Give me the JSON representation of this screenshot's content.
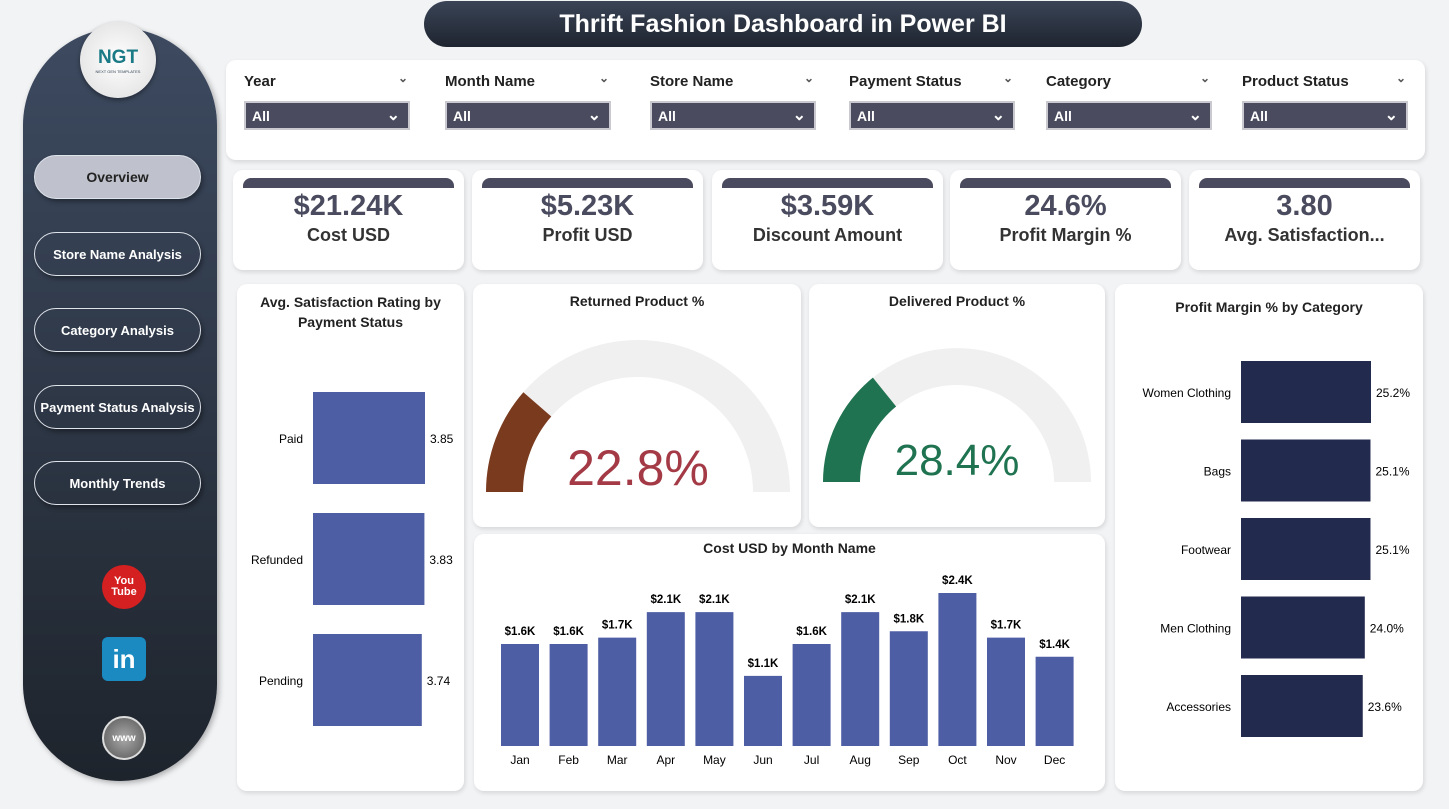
{
  "title": "Thrift Fashion Dashboard in Power BI",
  "logo": {
    "text": "NGT",
    "sub": "NEXT GEN TEMPLATES"
  },
  "nav": [
    {
      "label": "Overview",
      "active": true
    },
    {
      "label": "Store Name Analysis"
    },
    {
      "label": "Category Analysis"
    },
    {
      "label": "Payment Status Analysis"
    },
    {
      "label": "Monthly Trends"
    }
  ],
  "social": {
    "youtube": "You Tube",
    "linkedin": "in",
    "web": "www"
  },
  "filters": [
    {
      "label": "Year",
      "value": "All"
    },
    {
      "label": "Month Name",
      "value": "All"
    },
    {
      "label": "Store Name",
      "value": "All"
    },
    {
      "label": "Payment Status",
      "value": "All"
    },
    {
      "label": "Category",
      "value": "All"
    },
    {
      "label": "Product Status",
      "value": "All"
    }
  ],
  "kpis": [
    {
      "value": "$21.24K",
      "label": "Cost USD"
    },
    {
      "value": "$5.23K",
      "label": "Profit USD"
    },
    {
      "value": "$3.59K",
      "label": "Discount Amount"
    },
    {
      "value": "24.6%",
      "label": "Profit Margin %"
    },
    {
      "value": "3.80",
      "label": "Avg. Satisfaction..."
    }
  ],
  "colors": {
    "bar": "#4e5ea5",
    "catbar": "#222a4e",
    "returned": "#7a3a1e",
    "returned_text": "#a33a45",
    "delivered": "#1f7350",
    "track": "#f1f0f0"
  },
  "chart_data": [
    {
      "type": "bar",
      "title": "Avg. Satisfaction Rating by Payment Status",
      "orientation": "horizontal",
      "categories": [
        "Paid",
        "Refunded",
        "Pending"
      ],
      "values": [
        3.85,
        3.83,
        3.74
      ],
      "labels": [
        "3.85",
        "3.83",
        "3.74"
      ]
    },
    {
      "type": "gauge",
      "title": "Returned Product %",
      "value": 22.8,
      "label": "22.8%",
      "range": [
        0,
        100
      ]
    },
    {
      "type": "gauge",
      "title": "Delivered Product %",
      "value": 28.4,
      "label": "28.4%",
      "range": [
        0,
        100
      ]
    },
    {
      "type": "bar",
      "title": "Cost USD by Month Name",
      "categories": [
        "Jan",
        "Feb",
        "Mar",
        "Apr",
        "May",
        "Jun",
        "Jul",
        "Aug",
        "Sep",
        "Oct",
        "Nov",
        "Dec"
      ],
      "values": [
        1.6,
        1.6,
        1.7,
        2.1,
        2.1,
        1.1,
        1.6,
        2.1,
        1.8,
        2.4,
        1.7,
        1.4
      ],
      "labels": [
        "$1.6K",
        "$1.6K",
        "$1.7K",
        "$2.1K",
        "$2.1K",
        "$1.1K",
        "$1.6K",
        "$2.1K",
        "$1.8K",
        "$2.4K",
        "$1.7K",
        "$1.4K"
      ],
      "unit": "K USD"
    },
    {
      "type": "bar",
      "title": "Profit Margin % by Category",
      "orientation": "horizontal",
      "categories": [
        "Women Clothing",
        "Bags",
        "Footwear",
        "Men Clothing",
        "Accessories"
      ],
      "values": [
        25.2,
        25.1,
        25.1,
        24.0,
        23.6
      ],
      "labels": [
        "25.2%",
        "25.1%",
        "25.1%",
        "24.0%",
        "23.6%"
      ]
    }
  ]
}
